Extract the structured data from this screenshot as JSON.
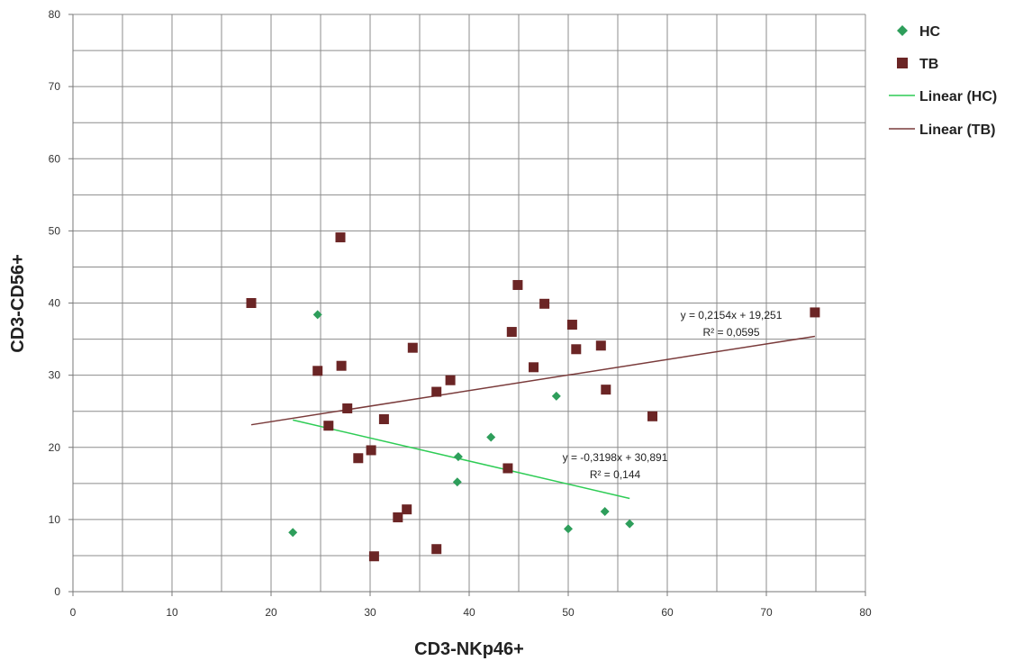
{
  "chart_data": {
    "type": "scatter",
    "title": "",
    "xlabel": "CD3-NKp46+",
    "ylabel": "CD3-CD56+",
    "xlim": [
      0,
      80
    ],
    "ylim": [
      0,
      80
    ],
    "xticks": [
      0,
      10,
      20,
      30,
      40,
      50,
      60,
      70,
      80
    ],
    "yticks": [
      0,
      10,
      20,
      30,
      40,
      50,
      60,
      70,
      80
    ],
    "grid": true,
    "legend_position": "top-right",
    "series": [
      {
        "name": "HC",
        "marker": "diamond",
        "color": "#2e9e5b",
        "points": [
          [
            22.2,
            8.2
          ],
          [
            24.7,
            38.4
          ],
          [
            38.9,
            18.7
          ],
          [
            38.8,
            15.2
          ],
          [
            42.2,
            21.4
          ],
          [
            48.8,
            27.1
          ],
          [
            50.0,
            8.7
          ],
          [
            53.7,
            11.1
          ],
          [
            56.2,
            9.4
          ]
        ]
      },
      {
        "name": "TB",
        "marker": "square",
        "color": "#6b2525",
        "points": [
          [
            18.0,
            40.0
          ],
          [
            24.7,
            30.6
          ],
          [
            25.8,
            23.0
          ],
          [
            27.0,
            49.1
          ],
          [
            27.1,
            31.3
          ],
          [
            27.7,
            25.4
          ],
          [
            28.8,
            18.5
          ],
          [
            30.1,
            19.6
          ],
          [
            30.4,
            4.9
          ],
          [
            31.4,
            23.9
          ],
          [
            32.8,
            10.3
          ],
          [
            33.7,
            11.4
          ],
          [
            34.3,
            33.8
          ],
          [
            36.7,
            27.7
          ],
          [
            36.7,
            5.9
          ],
          [
            38.1,
            29.3
          ],
          [
            43.9,
            17.1
          ],
          [
            44.3,
            36.0
          ],
          [
            44.9,
            42.5
          ],
          [
            46.5,
            31.1
          ],
          [
            47.6,
            39.9
          ],
          [
            50.4,
            37.0
          ],
          [
            50.8,
            33.6
          ],
          [
            53.3,
            34.1
          ],
          [
            53.8,
            28.0
          ],
          [
            58.5,
            24.3
          ],
          [
            74.9,
            38.7
          ]
        ]
      }
    ],
    "trendlines": [
      {
        "name": "Linear (HC)",
        "color": "#2ecc55",
        "slope": -0.3198,
        "intercept": 30.891,
        "x_range": [
          22.2,
          56.2
        ],
        "equation": "y = -0,3198x + 30,891",
        "r2": "R² = 0,144"
      },
      {
        "name": "Linear (TB)",
        "color": "#7a3b3b",
        "slope": 0.2154,
        "intercept": 19.251,
        "x_range": [
          18.0,
          74.9
        ],
        "equation": "y = 0,2154x + 19,251",
        "r2": "R² = 0,0595"
      }
    ]
  },
  "legend": {
    "items": [
      {
        "label": "HC",
        "kind": "diamond",
        "color": "#2e9e5b"
      },
      {
        "label": "TB",
        "kind": "square",
        "color": "#6b2525"
      },
      {
        "label": "Linear (HC)",
        "kind": "line",
        "color": "#2ecc55"
      },
      {
        "label": "Linear (TB)",
        "kind": "line",
        "color": "#7a3b3b"
      }
    ]
  }
}
